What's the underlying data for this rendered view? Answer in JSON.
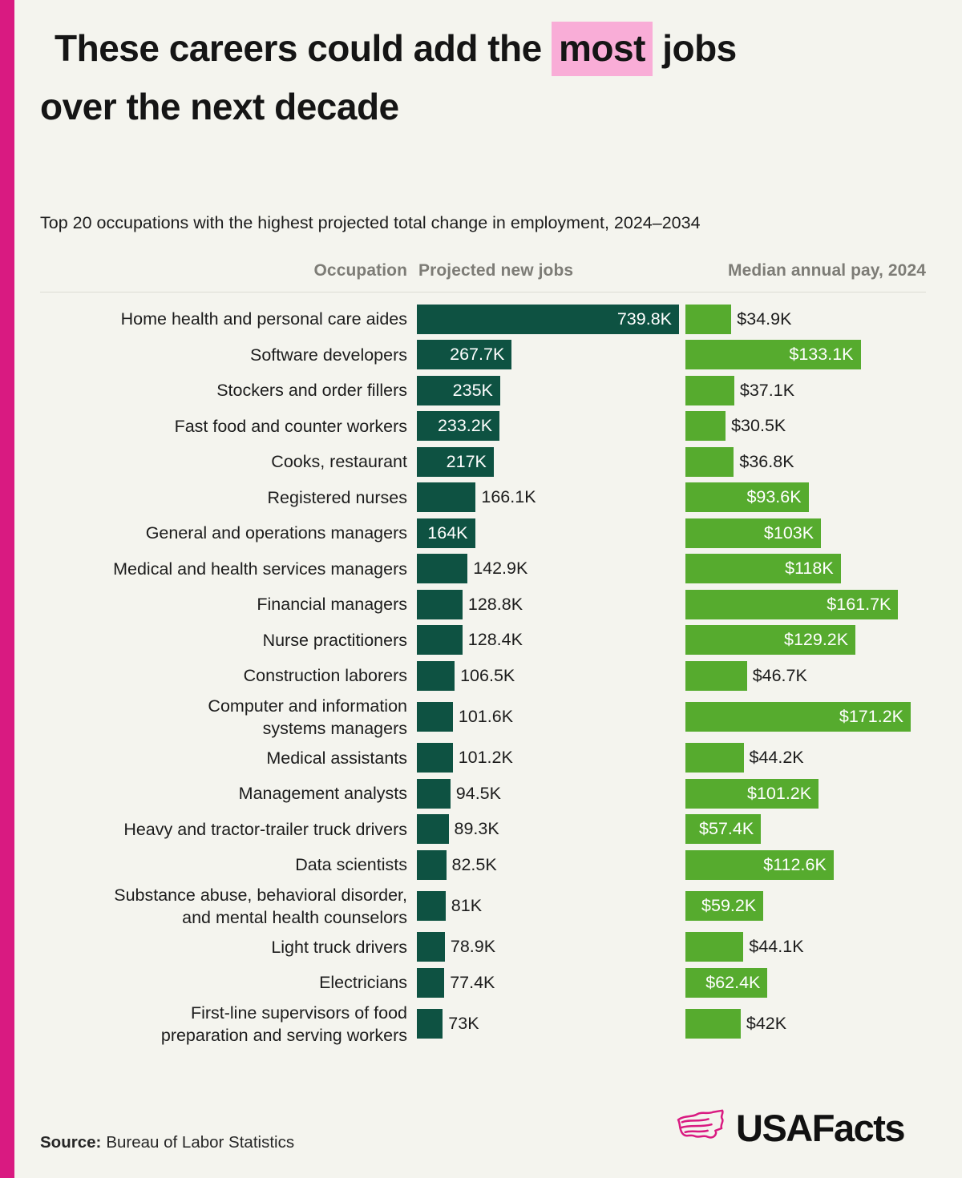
{
  "page": {
    "background_color": "#f4f4ee",
    "accent_stripe_color": "#d91a81"
  },
  "title": {
    "line1_pre": "These careers could add the ",
    "highlight": "most",
    "line1_post": " jobs",
    "line2": "over the next decade",
    "highlight_color": "#f9add7"
  },
  "subtitle": "Top 20 occupations with the highest projected total change in employment, 2024–2034",
  "table_headers": {
    "occupation": "Occupation",
    "jobs": "Projected new jobs",
    "pay": "Median annual pay, 2024"
  },
  "chart_data": {
    "type": "bar",
    "orientation": "horizontal",
    "title": "These careers could add the most jobs over the next decade",
    "subtitle": "Top 20 occupations with the highest projected total change in employment, 2024–2034",
    "legend_position": "none",
    "grid": false,
    "series": [
      {
        "name": "Projected new jobs",
        "unit": "thousand jobs",
        "color": "#0e5242",
        "axis_max": 739.8
      },
      {
        "name": "Median annual pay, 2024",
        "unit": "thousand dollars",
        "color": "#56ab2e",
        "axis_max": 171.2
      }
    ],
    "rows": [
      {
        "occupation": "Home health and personal care aides",
        "jobs": 739.8,
        "jobs_label": "739.8K",
        "jobs_label_inside": true,
        "pay": 34.9,
        "pay_label": "$34.9K",
        "pay_label_inside": false
      },
      {
        "occupation": "Software developers",
        "jobs": 267.7,
        "jobs_label": "267.7K",
        "jobs_label_inside": true,
        "pay": 133.1,
        "pay_label": "$133.1K",
        "pay_label_inside": true
      },
      {
        "occupation": "Stockers and order fillers",
        "jobs": 235,
        "jobs_label": "235K",
        "jobs_label_inside": true,
        "pay": 37.1,
        "pay_label": "$37.1K",
        "pay_label_inside": false
      },
      {
        "occupation": "Fast food and counter workers",
        "jobs": 233.2,
        "jobs_label": "233.2K",
        "jobs_label_inside": true,
        "pay": 30.5,
        "pay_label": "$30.5K",
        "pay_label_inside": false
      },
      {
        "occupation": "Cooks, restaurant",
        "jobs": 217,
        "jobs_label": "217K",
        "jobs_label_inside": true,
        "pay": 36.8,
        "pay_label": "$36.8K",
        "pay_label_inside": false
      },
      {
        "occupation": "Registered nurses",
        "jobs": 166.1,
        "jobs_label": "166.1K",
        "jobs_label_inside": false,
        "pay": 93.6,
        "pay_label": "$93.6K",
        "pay_label_inside": true
      },
      {
        "occupation": "General and operations managers",
        "jobs": 164,
        "jobs_label": "164K",
        "jobs_label_inside": true,
        "pay": 103,
        "pay_label": "$103K",
        "pay_label_inside": true
      },
      {
        "occupation": "Medical and health services managers",
        "jobs": 142.9,
        "jobs_label": "142.9K",
        "jobs_label_inside": false,
        "pay": 118,
        "pay_label": "$118K",
        "pay_label_inside": true
      },
      {
        "occupation": "Financial managers",
        "jobs": 128.8,
        "jobs_label": "128.8K",
        "jobs_label_inside": false,
        "pay": 161.7,
        "pay_label": "$161.7K",
        "pay_label_inside": true
      },
      {
        "occupation": "Nurse practitioners",
        "jobs": 128.4,
        "jobs_label": "128.4K",
        "jobs_label_inside": false,
        "pay": 129.2,
        "pay_label": "$129.2K",
        "pay_label_inside": true
      },
      {
        "occupation": "Construction laborers",
        "jobs": 106.5,
        "jobs_label": "106.5K",
        "jobs_label_inside": false,
        "pay": 46.7,
        "pay_label": "$46.7K",
        "pay_label_inside": false
      },
      {
        "occupation": "Computer and information\nsystems managers",
        "jobs": 101.6,
        "jobs_label": "101.6K",
        "jobs_label_inside": false,
        "pay": 171.2,
        "pay_label": "$171.2K",
        "pay_label_inside": true
      },
      {
        "occupation": "Medical assistants",
        "jobs": 101.2,
        "jobs_label": "101.2K",
        "jobs_label_inside": false,
        "pay": 44.2,
        "pay_label": "$44.2K",
        "pay_label_inside": false
      },
      {
        "occupation": "Management analysts",
        "jobs": 94.5,
        "jobs_label": "94.5K",
        "jobs_label_inside": false,
        "pay": 101.2,
        "pay_label": "$101.2K",
        "pay_label_inside": true
      },
      {
        "occupation": "Heavy and tractor-trailer truck drivers",
        "jobs": 89.3,
        "jobs_label": "89.3K",
        "jobs_label_inside": false,
        "pay": 57.4,
        "pay_label": "$57.4K",
        "pay_label_inside": true
      },
      {
        "occupation": "Data scientists",
        "jobs": 82.5,
        "jobs_label": "82.5K",
        "jobs_label_inside": false,
        "pay": 112.6,
        "pay_label": "$112.6K",
        "pay_label_inside": true
      },
      {
        "occupation": "Substance abuse, behavioral disorder,\nand mental health counselors",
        "jobs": 81,
        "jobs_label": "81K",
        "jobs_label_inside": false,
        "pay": 59.2,
        "pay_label": "$59.2K",
        "pay_label_inside": true
      },
      {
        "occupation": "Light truck drivers",
        "jobs": 78.9,
        "jobs_label": "78.9K",
        "jobs_label_inside": false,
        "pay": 44.1,
        "pay_label": "$44.1K",
        "pay_label_inside": false
      },
      {
        "occupation": "Electricians",
        "jobs": 77.4,
        "jobs_label": "77.4K",
        "jobs_label_inside": false,
        "pay": 62.4,
        "pay_label": "$62.4K",
        "pay_label_inside": true
      },
      {
        "occupation": "First-line supervisors of food\npreparation and serving workers",
        "jobs": 73,
        "jobs_label": "73K",
        "jobs_label_inside": false,
        "pay": 42,
        "pay_label": "$42K",
        "pay_label_inside": false
      }
    ]
  },
  "footer": {
    "source_label": "Source:",
    "source_text": "Bureau of Labor Statistics",
    "logo_text": "USAFacts",
    "logo_color": "#d91a81"
  }
}
